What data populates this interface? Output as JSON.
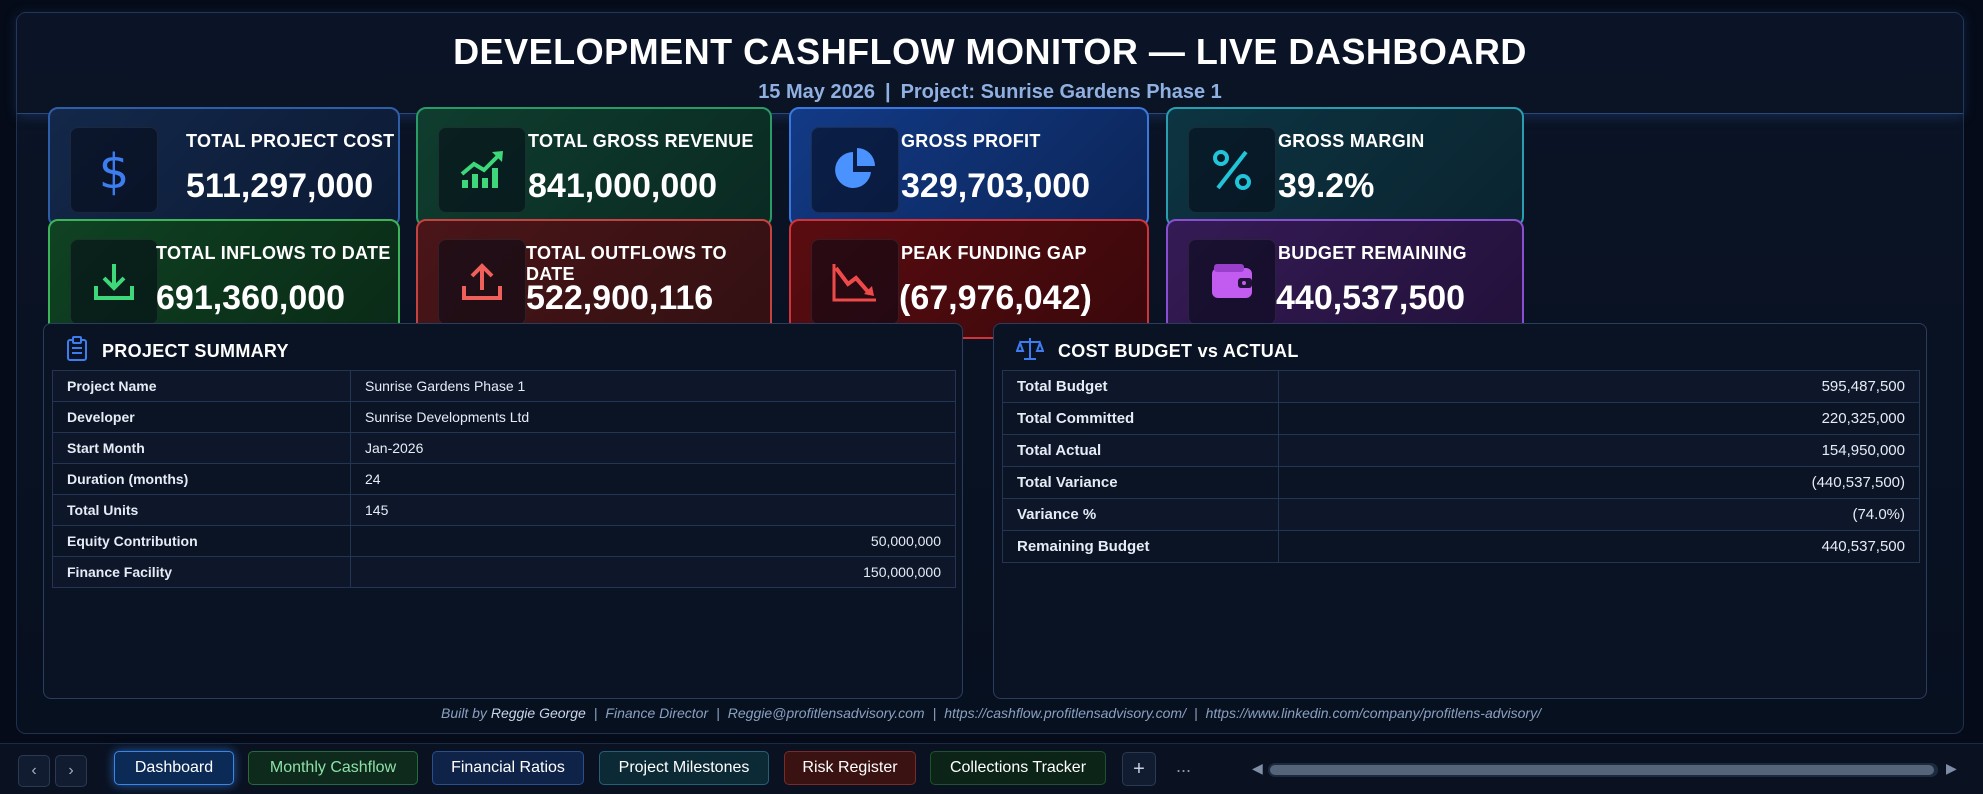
{
  "header": {
    "title": "DEVELOPMENT CASHFLOW MONITOR — LIVE DASHBOARD",
    "date": "15 May 2026",
    "separator": "|",
    "project": "Project: Sunrise Gardens Phase 1"
  },
  "kpis": [
    {
      "label": "TOTAL PROJECT COST",
      "value": "511,297,000",
      "icon": "dollar-icon",
      "color": "#3d7df0"
    },
    {
      "label": "TOTAL GROSS REVENUE",
      "value": "841,000,000",
      "icon": "trend-up-icon",
      "color": "#3ed87a"
    },
    {
      "label": "GROSS PROFIT",
      "value": "329,703,000",
      "icon": "pie-chart-icon",
      "color": "#4a92ff"
    },
    {
      "label": "GROSS MARGIN",
      "value": "39.2%",
      "icon": "percent-icon",
      "color": "#22c4d8"
    },
    {
      "label": "TOTAL INFLOWS TO DATE",
      "value": "691,360,000",
      "icon": "download-icon",
      "color": "#3ed87a"
    },
    {
      "label": "TOTAL OUTFLOWS TO DATE",
      "value": "522,900,116",
      "icon": "upload-icon",
      "color": "#f0605a"
    },
    {
      "label": "PEAK FUNDING GAP",
      "value": "(67,976,042)",
      "icon": "trend-down-icon",
      "color": "#ef4a4a"
    },
    {
      "label": "BUDGET REMAINING",
      "value": "440,537,500",
      "icon": "wallet-icon",
      "color": "#c25cf0"
    }
  ],
  "summary": {
    "title": "PROJECT SUMMARY",
    "icon": "clipboard-icon",
    "rows": [
      {
        "k": "Project Name",
        "v": "Sunrise Gardens Phase 1"
      },
      {
        "k": "Developer",
        "v": "Sunrise Developments Ltd"
      },
      {
        "k": "Start Month",
        "v": "Jan-2026"
      },
      {
        "k": "Duration (months)",
        "v": "24"
      },
      {
        "k": "Total Units",
        "v": "145"
      },
      {
        "k": "Equity Contribution",
        "v": "50,000,000"
      },
      {
        "k": "Finance Facility",
        "v": "150,000,000"
      }
    ]
  },
  "budget": {
    "title": "COST BUDGET vs ACTUAL",
    "icon": "scales-icon",
    "rows": [
      {
        "k": "Total Budget",
        "v": "595,487,500"
      },
      {
        "k": "Total Committed",
        "v": "220,325,000"
      },
      {
        "k": "Total Actual",
        "v": "154,950,000"
      },
      {
        "k": "Total Variance",
        "v": "(440,537,500)"
      },
      {
        "k": "Variance %",
        "v": "(74.0%)"
      },
      {
        "k": "Remaining Budget",
        "v": "440,537,500"
      }
    ]
  },
  "footer": {
    "built_by": "Built by",
    "author": "Reggie George",
    "role": "Finance Director",
    "email": "Reggie@profitlensadvisory.com",
    "site": "https://cashflow.profitlensadvisory.com/",
    "linkedin": "https://www.linkedin.com/company/profitlens-advisory/",
    "sep": "|"
  },
  "tabs": {
    "dashboard": "Dashboard",
    "monthly": "Monthly Cashflow",
    "ratios": "Financial Ratios",
    "milestones": "Project Milestones",
    "risk": "Risk Register",
    "collections": "Collections Tracker",
    "add": "+",
    "more": "...",
    "prev": "‹",
    "next": "›",
    "scroll_left": "◀",
    "scroll_right": "▶"
  }
}
